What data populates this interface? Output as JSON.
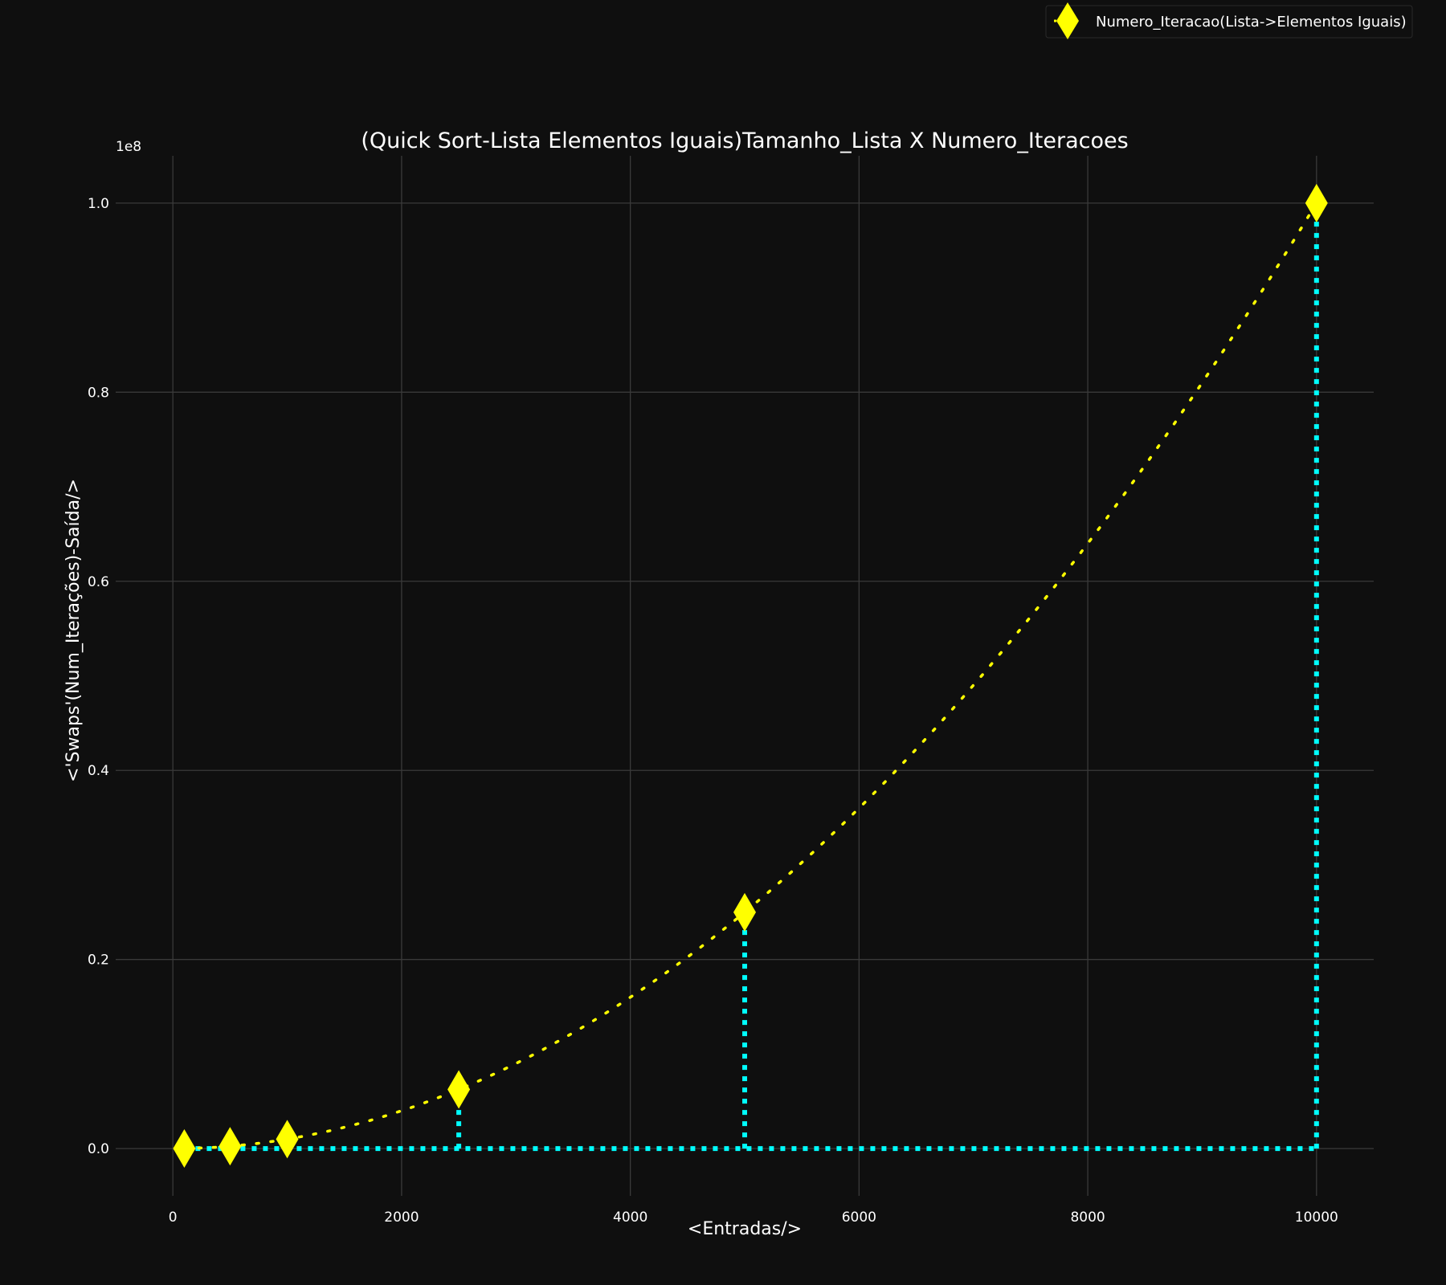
{
  "chart_data": {
    "type": "line",
    "title": "(Quick Sort-Lista Elementos Iguais)Tamanho_Lista X Numero_Iteracoes",
    "xlabel": "<Entradas/>",
    "ylabel": "<'Swaps'(Num_Iterações)-Saída/>",
    "y_offset_label": "1e8",
    "xlim": [
      -500,
      10500
    ],
    "ylim": [
      -0.05,
      1.05
    ],
    "x_ticks": [
      0,
      2000,
      4000,
      6000,
      8000,
      10000
    ],
    "y_ticks": [
      0.0,
      0.2,
      0.4,
      0.6,
      0.8,
      1.0
    ],
    "x_tick_labels": [
      "0",
      "2000",
      "4000",
      "6000",
      "8000",
      "10000"
    ],
    "y_tick_labels": [
      "0.0",
      "0.2",
      "0.4",
      "0.6",
      "0.8",
      "1.0"
    ],
    "grid": true,
    "legend_position": "top-right",
    "series": [
      {
        "name": "Numero_Iteracao(Lista->Elementos Iguais)",
        "x": [
          100,
          500,
          1000,
          2500,
          5000,
          10000
        ],
        "y": [
          0.0001,
          0.0025,
          0.01,
          0.0625,
          0.25,
          1.0
        ],
        "color": "#ffff00",
        "marker": "diamond",
        "line_style": "dotted"
      }
    ],
    "guide_color": "#00ffff"
  }
}
